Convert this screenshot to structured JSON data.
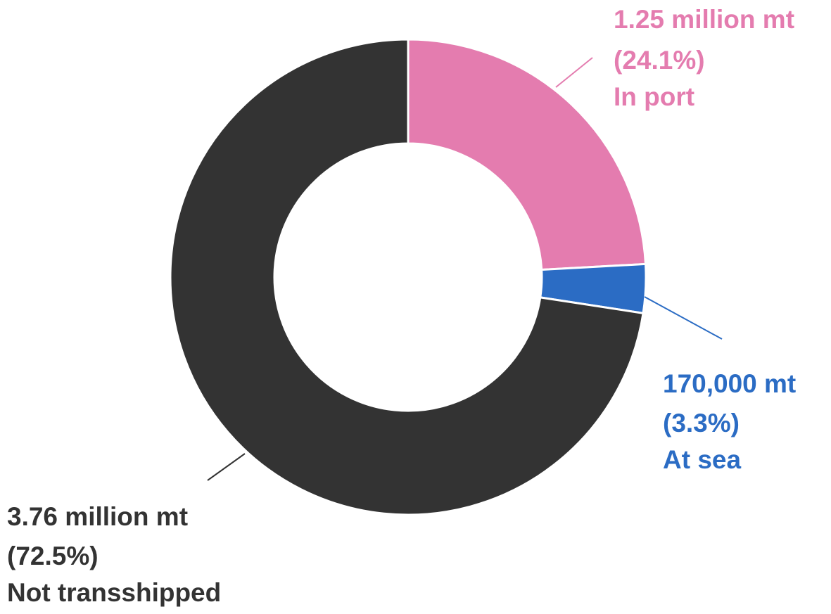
{
  "chart_data": {
    "type": "donut",
    "categories": [
      "In port",
      "At sea",
      "Not transshipped"
    ],
    "values": [
      24.1,
      3.3,
      72.5
    ],
    "value_labels": [
      "(24.1%)",
      "(3.3%)",
      "(72.5%)"
    ],
    "amounts": [
      1250000,
      170000,
      3760000
    ],
    "amount_labels": [
      "1.25 million mt",
      "170,000 mt",
      "3.76 million mt"
    ],
    "colors": [
      "#e47caf",
      "#2b6cc4",
      "#333333"
    ]
  }
}
